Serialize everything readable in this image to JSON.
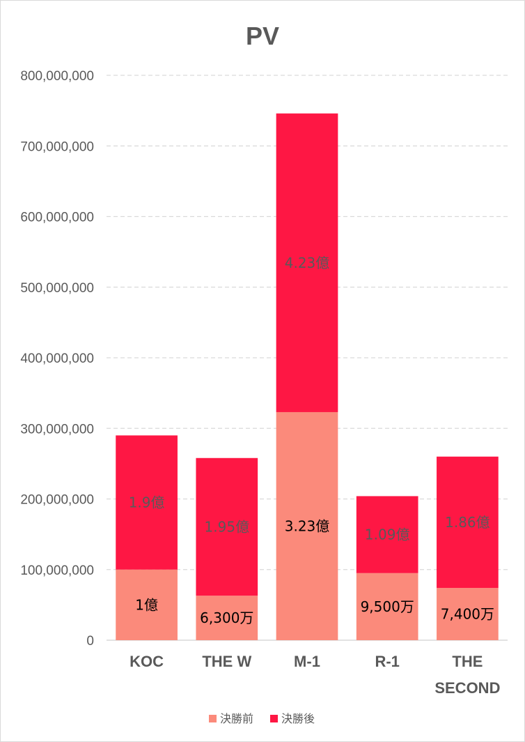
{
  "chart_data": {
    "type": "bar",
    "stacked": true,
    "title": "PV",
    "categories": [
      "KOC",
      "THE W",
      "M-1",
      "R-1",
      "THE SECOND"
    ],
    "series": [
      {
        "name": "決勝前",
        "color": "#fb8a7b",
        "values": [
          100000000,
          63000000,
          323000000,
          95000000,
          74000000
        ],
        "labels": [
          "1億",
          "6,300万",
          "3.23億",
          "9,500万",
          "7,400万"
        ],
        "label_color": "#000000"
      },
      {
        "name": "決勝後",
        "color": "#fe1744",
        "values": [
          190000000,
          195000000,
          423000000,
          109000000,
          186000000
        ],
        "labels": [
          "1.9億",
          "1.95億",
          "4.23億",
          "1.09億",
          "1.86億"
        ],
        "label_color": "#595959"
      }
    ],
    "yticks": [
      "0",
      "100,000,000",
      "200,000,000",
      "300,000,000",
      "400,000,000",
      "500,000,000",
      "600,000,000",
      "700,000,000",
      "800,000,000"
    ],
    "ylim": [
      0,
      800000000
    ],
    "grid": true,
    "legend": "bottom",
    "xlabel": "",
    "ylabel": ""
  }
}
